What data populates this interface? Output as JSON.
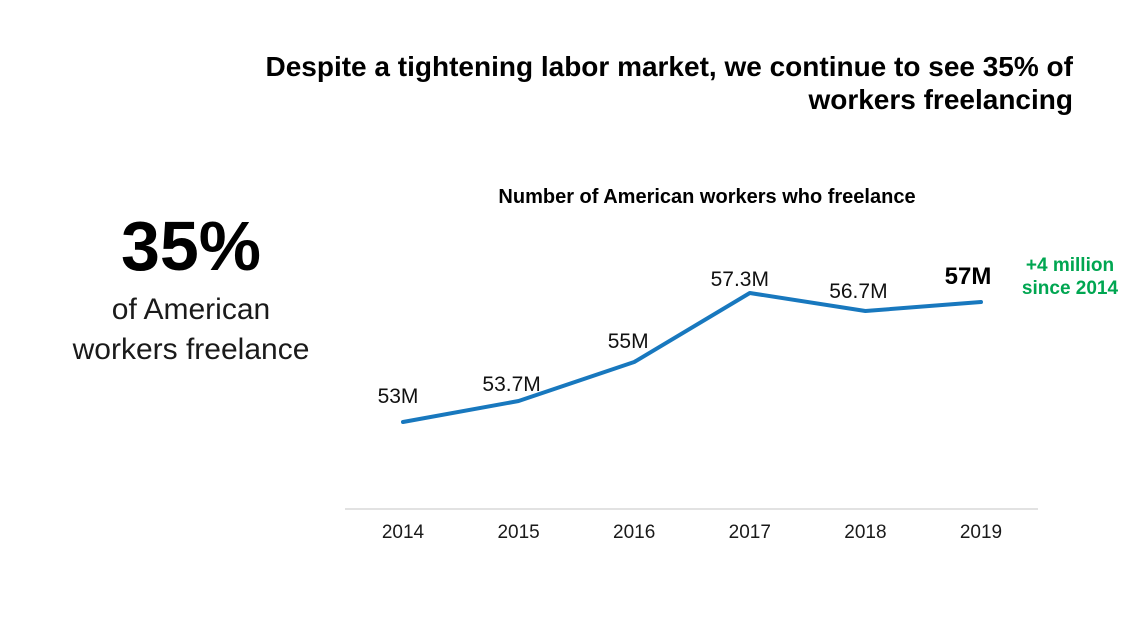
{
  "page": {
    "background": "#ffffff"
  },
  "header": {
    "title_lines": [
      "Despite a tightening labor market, we continue to see 35% of",
      "workers freelancing"
    ]
  },
  "stat": {
    "value": "35%",
    "label_lines": [
      "of American",
      "workers freelance"
    ]
  },
  "chart_data": {
    "type": "line",
    "title": "Number of American workers who freelance",
    "categories": [
      "2014",
      "2015",
      "2016",
      "2017",
      "2018",
      "2019"
    ],
    "values": [
      53,
      53.7,
      55,
      57.3,
      56.7,
      57
    ],
    "point_labels": [
      "53M",
      "53.7M",
      "55M",
      "57.3M",
      "56.7M",
      "57M"
    ],
    "unit": "millions of workers",
    "ylim": [
      50.1,
      59.4
    ],
    "grid": false,
    "legend": "none",
    "line_color": "#1878be",
    "axis_color": "#d9d9d9",
    "annotation": {
      "lines": [
        "+4 million",
        "since 2014"
      ],
      "color": "#00a651"
    }
  }
}
